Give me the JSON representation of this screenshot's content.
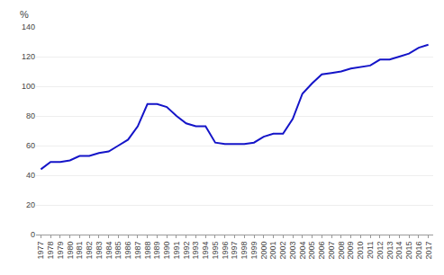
{
  "chart_data": {
    "type": "line",
    "x": [
      1977,
      1978,
      1979,
      1980,
      1981,
      1982,
      1983,
      1984,
      1985,
      1986,
      1987,
      1988,
      1989,
      1990,
      1991,
      1992,
      1993,
      1994,
      1995,
      1996,
      1997,
      1998,
      1999,
      2000,
      2001,
      2002,
      2003,
      2004,
      2005,
      2006,
      2007,
      2008,
      2009,
      2010,
      2011,
      2012,
      2013,
      2014,
      2015,
      2016,
      2017
    ],
    "values": [
      44,
      49,
      49,
      50,
      53,
      53,
      55,
      56,
      60,
      64,
      73,
      88,
      88,
      86,
      80,
      75,
      73,
      73,
      62,
      61,
      61,
      61,
      62,
      66,
      68,
      68,
      78,
      95,
      102,
      108,
      109,
      110,
      112,
      113,
      114,
      118,
      118,
      120,
      122,
      126,
      128
    ],
    "color": "#1414c8",
    "xlim": [
      1976.5,
      2017.5
    ],
    "xticks": [
      1977,
      1978,
      1979,
      1980,
      1981,
      1982,
      1983,
      1984,
      1985,
      1986,
      1987,
      1988,
      1989,
      1990,
      1991,
      1992,
      1993,
      1994,
      1995,
      1996,
      1997,
      1998,
      1999,
      2000,
      2001,
      2002,
      2003,
      2004,
      2005,
      2006,
      2007,
      2008,
      2009,
      2010,
      2011,
      2012,
      2013,
      2014,
      2015,
      2016,
      2017
    ],
    "ylim": [
      0,
      140
    ],
    "yticks": [
      0,
      20,
      40,
      60,
      80,
      100,
      120,
      140
    ],
    "ylabel": "%",
    "grid": true
  }
}
